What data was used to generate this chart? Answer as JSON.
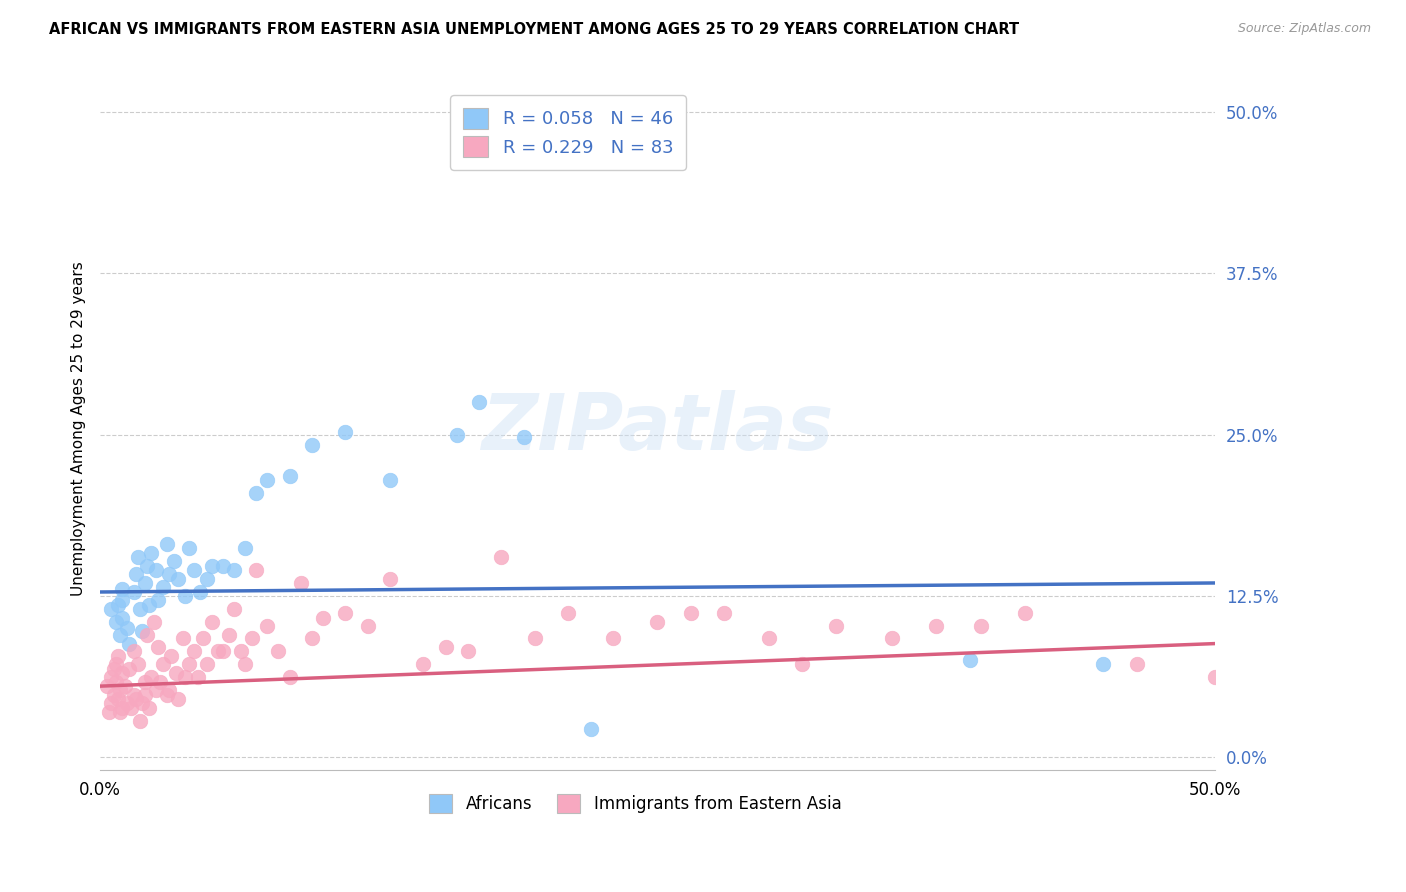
{
  "title": "AFRICAN VS IMMIGRANTS FROM EASTERN ASIA UNEMPLOYMENT AMONG AGES 25 TO 29 YEARS CORRELATION CHART",
  "source": "Source: ZipAtlas.com",
  "ylabel": "Unemployment Among Ages 25 to 29 years",
  "yticks": [
    "0.0%",
    "12.5%",
    "25.0%",
    "37.5%",
    "50.0%"
  ],
  "ytick_vals": [
    0.0,
    0.125,
    0.25,
    0.375,
    0.5
  ],
  "xrange": [
    0.0,
    0.5
  ],
  "yrange": [
    -0.01,
    0.52
  ],
  "africans_color": "#90C8F8",
  "eastern_asia_color": "#F7A8C0",
  "trend_african_color": "#4472C4",
  "trend_eastern_color": "#D95F7F",
  "legend_label_1": "R = 0.058   N = 46",
  "legend_label_2": "R = 0.229   N = 83",
  "legend_color_text": "#4472C4",
  "legend_bottom_1": "Africans",
  "legend_bottom_2": "Immigrants from Eastern Asia",
  "africans_x": [
    0.005,
    0.007,
    0.008,
    0.009,
    0.01,
    0.01,
    0.01,
    0.012,
    0.013,
    0.015,
    0.016,
    0.017,
    0.018,
    0.019,
    0.02,
    0.021,
    0.022,
    0.023,
    0.025,
    0.026,
    0.028,
    0.03,
    0.031,
    0.033,
    0.035,
    0.038,
    0.04,
    0.042,
    0.045,
    0.048,
    0.05,
    0.055,
    0.06,
    0.065,
    0.07,
    0.075,
    0.085,
    0.095,
    0.11,
    0.13,
    0.16,
    0.19,
    0.22,
    0.17,
    0.39,
    0.45
  ],
  "africans_y": [
    0.115,
    0.105,
    0.118,
    0.095,
    0.108,
    0.122,
    0.13,
    0.1,
    0.088,
    0.128,
    0.142,
    0.155,
    0.115,
    0.098,
    0.135,
    0.148,
    0.118,
    0.158,
    0.145,
    0.122,
    0.132,
    0.165,
    0.142,
    0.152,
    0.138,
    0.125,
    0.162,
    0.145,
    0.128,
    0.138,
    0.148,
    0.148,
    0.145,
    0.162,
    0.205,
    0.215,
    0.218,
    0.242,
    0.252,
    0.215,
    0.25,
    0.248,
    0.022,
    0.275,
    0.075,
    0.072
  ],
  "eastern_x": [
    0.003,
    0.004,
    0.005,
    0.005,
    0.006,
    0.006,
    0.007,
    0.007,
    0.008,
    0.008,
    0.009,
    0.009,
    0.01,
    0.01,
    0.011,
    0.012,
    0.013,
    0.014,
    0.015,
    0.015,
    0.016,
    0.017,
    0.018,
    0.019,
    0.02,
    0.02,
    0.021,
    0.022,
    0.023,
    0.024,
    0.025,
    0.026,
    0.027,
    0.028,
    0.03,
    0.031,
    0.032,
    0.034,
    0.035,
    0.037,
    0.038,
    0.04,
    0.042,
    0.044,
    0.046,
    0.048,
    0.05,
    0.053,
    0.055,
    0.058,
    0.06,
    0.063,
    0.065,
    0.068,
    0.07,
    0.075,
    0.08,
    0.085,
    0.09,
    0.095,
    0.1,
    0.11,
    0.12,
    0.13,
    0.145,
    0.155,
    0.165,
    0.18,
    0.195,
    0.21,
    0.23,
    0.25,
    0.265,
    0.28,
    0.3,
    0.315,
    0.33,
    0.355,
    0.375,
    0.395,
    0.415,
    0.465,
    0.5
  ],
  "eastern_y": [
    0.055,
    0.035,
    0.042,
    0.062,
    0.048,
    0.068,
    0.058,
    0.072,
    0.045,
    0.078,
    0.035,
    0.052,
    0.038,
    0.065,
    0.055,
    0.042,
    0.068,
    0.038,
    0.048,
    0.082,
    0.045,
    0.072,
    0.028,
    0.042,
    0.058,
    0.048,
    0.095,
    0.038,
    0.062,
    0.105,
    0.052,
    0.085,
    0.058,
    0.072,
    0.048,
    0.052,
    0.078,
    0.065,
    0.045,
    0.092,
    0.062,
    0.072,
    0.082,
    0.062,
    0.092,
    0.072,
    0.105,
    0.082,
    0.082,
    0.095,
    0.115,
    0.082,
    0.072,
    0.092,
    0.145,
    0.102,
    0.082,
    0.062,
    0.135,
    0.092,
    0.108,
    0.112,
    0.102,
    0.138,
    0.072,
    0.085,
    0.082,
    0.155,
    0.092,
    0.112,
    0.092,
    0.105,
    0.112,
    0.112,
    0.092,
    0.072,
    0.102,
    0.092,
    0.102,
    0.102,
    0.112,
    0.072,
    0.062
  ]
}
